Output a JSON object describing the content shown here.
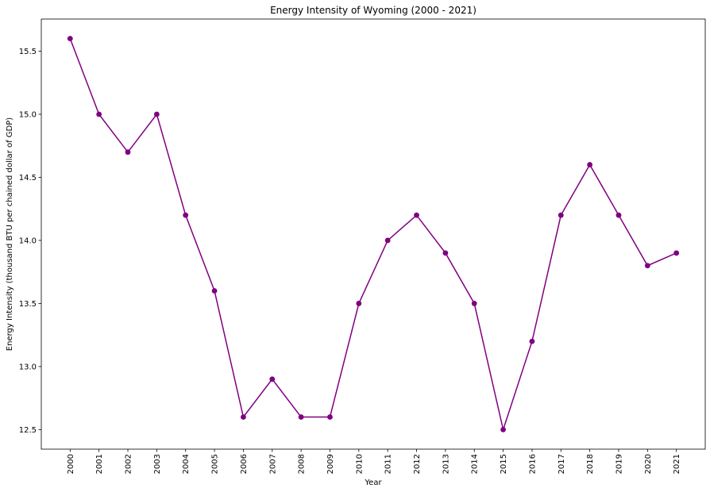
{
  "chart_data": {
    "type": "line",
    "title": "Energy Intensity of Wyoming (2000 - 2021)",
    "xlabel": "Year",
    "ylabel": "Energy Intensity (thousand BTU per chained dollar of GDP)",
    "x": [
      "2000",
      "2001",
      "2002",
      "2003",
      "2004",
      "2005",
      "2006",
      "2007",
      "2008",
      "2009",
      "2010",
      "2011",
      "2012",
      "2013",
      "2014",
      "2015",
      "2016",
      "2017",
      "2018",
      "2019",
      "2020",
      "2021"
    ],
    "series": [
      {
        "values": [
          15.6,
          15.0,
          14.7,
          15.0,
          14.2,
          13.6,
          12.6,
          12.9,
          12.6,
          12.6,
          13.5,
          14.0,
          14.2,
          13.9,
          13.5,
          12.5,
          13.2,
          14.2,
          14.6,
          14.2,
          13.8,
          13.9
        ],
        "color": "#800080"
      }
    ],
    "yticks": [
      "12.5",
      "13.0",
      "13.5",
      "14.0",
      "14.5",
      "15.0",
      "15.5"
    ],
    "ylim": [
      12.345,
      15.755
    ],
    "grid": false,
    "legend": "none"
  }
}
